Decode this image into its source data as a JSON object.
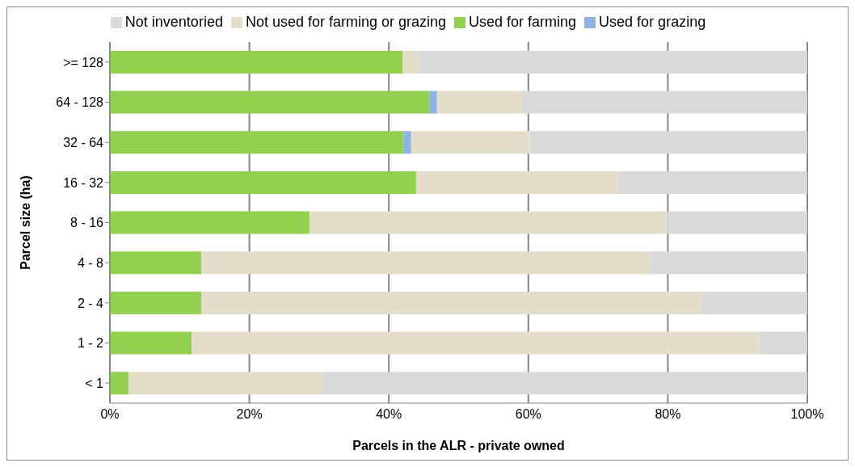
{
  "chart_data": {
    "type": "bar",
    "orientation": "horizontal",
    "stacked": true,
    "xlabel": "Parcels in the ALR - private owned",
    "ylabel": "Parcel size (ha)",
    "categories": [
      ">= 128",
      "64 - 128",
      "32 - 64",
      "16 - 32",
      "8 - 16",
      "4 - 8",
      "2 - 4",
      "1 - 2",
      "< 1"
    ],
    "series": [
      {
        "name": "Used for farming",
        "color": "#92d050",
        "values": [
          42.0,
          45.8,
          42.1,
          43.9,
          28.6,
          13.1,
          13.1,
          11.7,
          2.7
        ]
      },
      {
        "name": "Used for grazing",
        "color": "#8db4e2",
        "values": [
          0,
          1.1,
          1.1,
          0,
          0,
          0,
          0,
          0,
          0
        ]
      },
      {
        "name": "Not used for farming or grazing",
        "color": "#e3ddca",
        "values": [
          2.4,
          12.2,
          17.0,
          29.1,
          51.4,
          64.2,
          71.7,
          81.3,
          27.9
        ]
      },
      {
        "name": "Not inventoried",
        "color": "#d9d9d9",
        "values": [
          55.6,
          40.9,
          39.8,
          27.0,
          20.0,
          22.7,
          15.2,
          7.0,
          69.4
        ]
      }
    ],
    "xlim": [
      0,
      100
    ],
    "xticks": [
      {
        "value": 0,
        "label": "0%"
      },
      {
        "value": 20,
        "label": "20%"
      },
      {
        "value": 40,
        "label": "40%"
      },
      {
        "value": 60,
        "label": "60%"
      },
      {
        "value": 80,
        "label": "80%"
      },
      {
        "value": 100,
        "label": "100%"
      }
    ],
    "grid": "x",
    "legend": "top"
  }
}
